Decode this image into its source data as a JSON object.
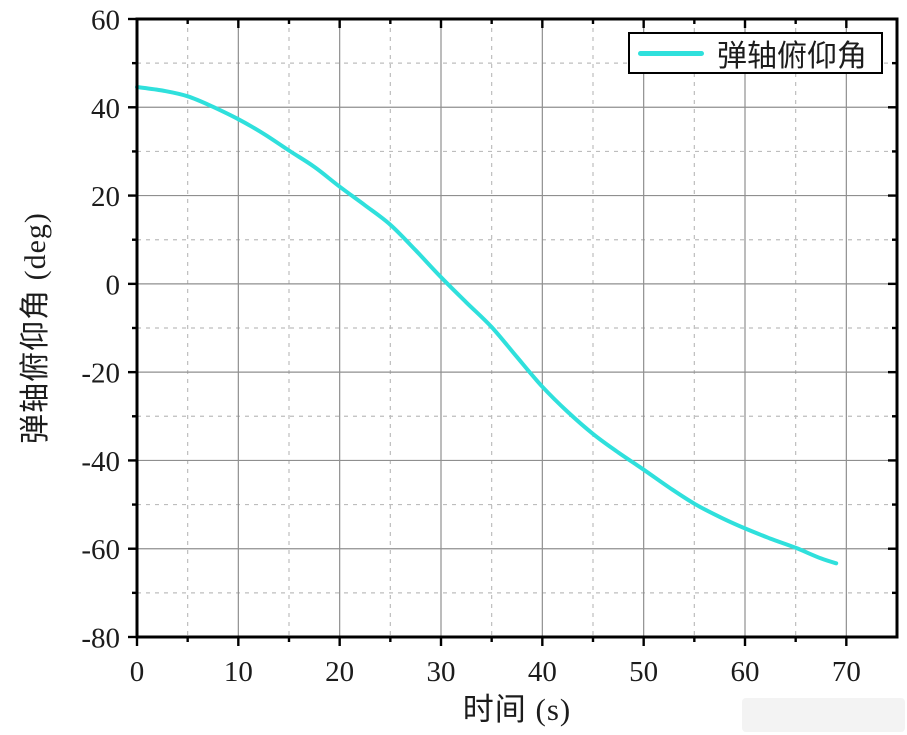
{
  "axis_labels": {
    "x": "时间 (s)",
    "y": "弹轴俯仰角 (deg)"
  },
  "legend": {
    "label": "弹轴俯仰角"
  },
  "colors": {
    "line": "#2fe0dc",
    "grid_major": "#8f8f8f",
    "grid_minor": "#bdbdbd",
    "spine": "#000000",
    "tick": "#000000",
    "text": "#1c1c1c",
    "background": "#ffffff"
  },
  "chart_data": {
    "type": "line",
    "title": "",
    "xlabel": "时间 (s)",
    "ylabel": "弹轴俯仰角 (deg)",
    "xlim": [
      0,
      75
    ],
    "ylim": [
      -80,
      60
    ],
    "xticks_major": [
      0,
      10,
      20,
      30,
      40,
      50,
      60,
      70
    ],
    "xticks_minor": [
      5,
      15,
      25,
      35,
      45,
      55,
      65
    ],
    "yticks_major": [
      -80,
      -60,
      -40,
      -20,
      0,
      20,
      40,
      60
    ],
    "yticks_minor": [
      -70,
      -50,
      -30,
      -10,
      10,
      30,
      50
    ],
    "grid": {
      "major_style": "solid",
      "minor_style": "dashed",
      "grid_on": true
    },
    "legend_position": "top-right",
    "series": [
      {
        "name": "弹轴俯仰角",
        "color": "#2fe0dc",
        "x": [
          0,
          2.5,
          5,
          7.5,
          10,
          12.5,
          15,
          17.5,
          20,
          22.5,
          25,
          27.5,
          30,
          32.5,
          35,
          37.5,
          40,
          42.5,
          45,
          47.5,
          50,
          52.5,
          55,
          57.5,
          60,
          62.5,
          65,
          67.5,
          69
        ],
        "y": [
          44.6,
          43.8,
          42.5,
          40.1,
          37.3,
          34.0,
          30.2,
          26.5,
          22.0,
          17.8,
          13.4,
          7.6,
          1.5,
          -4.2,
          -9.8,
          -16.6,
          -23.3,
          -29.0,
          -34.0,
          -38.2,
          -42.1,
          -46.1,
          -49.8,
          -52.8,
          -55.4,
          -57.7,
          -59.8,
          -62.2,
          -63.3
        ]
      }
    ]
  }
}
